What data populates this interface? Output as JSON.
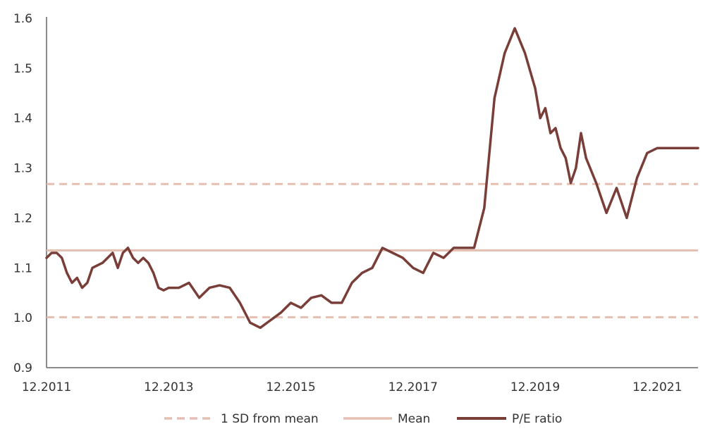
{
  "chart_data": {
    "type": "line",
    "title": "",
    "xlabel": "",
    "ylabel": "",
    "x_ticks": [
      "12.2011",
      "12.2013",
      "12.2015",
      "12.2017",
      "12.2019",
      "12.2021"
    ],
    "y_ticks": [
      "0.9",
      "1.0",
      "1.1",
      "1.2",
      "1.3",
      "1.4",
      "1.5",
      "1.6"
    ],
    "ylim": [
      0.9,
      1.6
    ],
    "xlim": [
      "2011-12",
      "2022-08"
    ],
    "grid": false,
    "legend_position": "bottom",
    "reference_lines": {
      "mean": 1.135,
      "sd_upper": 1.268,
      "sd_lower": 1.001
    },
    "series": [
      {
        "name": "P/E ratio",
        "x": [
          "2011-12",
          "2012-01",
          "2012-02",
          "2012-03",
          "2012-04",
          "2012-05",
          "2012-06",
          "2012-07",
          "2012-08",
          "2012-09",
          "2012-10",
          "2012-11",
          "2012-12",
          "2013-01",
          "2013-02",
          "2013-03",
          "2013-04",
          "2013-05",
          "2013-06",
          "2013-07",
          "2013-08",
          "2013-09",
          "2013-10",
          "2013-11",
          "2013-12",
          "2014-02",
          "2014-04",
          "2014-06",
          "2014-08",
          "2014-10",
          "2014-12",
          "2015-02",
          "2015-04",
          "2015-06",
          "2015-08",
          "2015-10",
          "2015-12",
          "2016-02",
          "2016-04",
          "2016-06",
          "2016-08",
          "2016-10",
          "2016-12",
          "2017-02",
          "2017-04",
          "2017-06",
          "2017-08",
          "2017-10",
          "2017-12",
          "2018-02",
          "2018-04",
          "2018-06",
          "2018-08",
          "2018-10",
          "2018-12",
          "2019-02",
          "2019-04",
          "2019-06",
          "2019-08",
          "2019-10",
          "2019-12",
          "2020-01",
          "2020-02",
          "2020-03",
          "2020-04",
          "2020-05",
          "2020-06",
          "2020-07",
          "2020-08",
          "2020-09",
          "2020-10",
          "2020-12",
          "2021-02",
          "2021-04",
          "2021-06",
          "2021-08",
          "2021-10",
          "2021-12",
          "2022-02",
          "2022-04",
          "2022-06",
          "2022-08"
        ],
        "values": [
          1.12,
          1.13,
          1.13,
          1.12,
          1.09,
          1.07,
          1.08,
          1.06,
          1.07,
          1.1,
          1.105,
          1.11,
          1.12,
          1.13,
          1.1,
          1.13,
          1.14,
          1.12,
          1.11,
          1.12,
          1.11,
          1.09,
          1.06,
          1.055,
          1.06,
          1.06,
          1.07,
          1.04,
          1.06,
          1.065,
          1.06,
          1.03,
          0.99,
          0.98,
          0.995,
          1.01,
          1.03,
          1.02,
          1.04,
          1.045,
          1.03,
          1.03,
          1.07,
          1.09,
          1.1,
          1.14,
          1.13,
          1.12,
          1.1,
          1.09,
          1.13,
          1.12,
          1.14,
          1.14,
          1.14,
          1.22,
          1.44,
          1.53,
          1.58,
          1.53,
          1.46,
          1.4,
          1.42,
          1.37,
          1.38,
          1.34,
          1.32,
          1.27,
          1.3,
          1.37,
          1.32,
          1.27,
          1.21,
          1.26,
          1.2,
          1.28,
          1.33,
          1.34,
          1.34,
          1.34,
          1.34,
          1.34
        ]
      }
    ]
  },
  "legend": {
    "sd_label": "1 SD from mean",
    "mean_label": "Mean",
    "pe_label": "P/E ratio"
  },
  "colors": {
    "pe_line": "#7a3e39",
    "mean_line": "#e6bfb3",
    "sd_line": "#e6bfb3",
    "axis": "#666666"
  }
}
